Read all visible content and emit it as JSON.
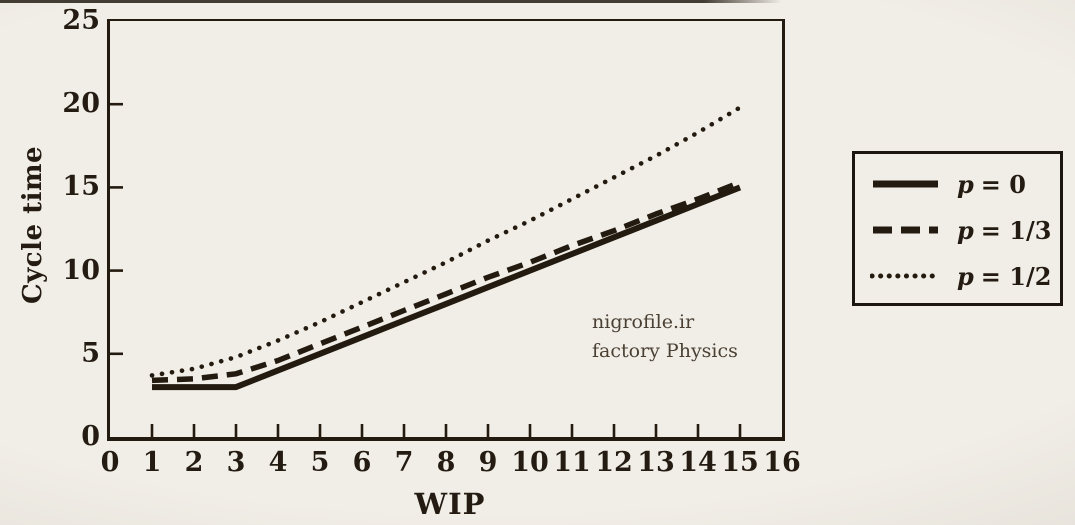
{
  "chart_data": {
    "type": "line",
    "title": "",
    "xlabel": "WIP",
    "ylabel": "Cycle time",
    "xlim": [
      0,
      16
    ],
    "ylim": [
      0,
      25
    ],
    "x_ticks": [
      0,
      1,
      2,
      3,
      4,
      5,
      6,
      7,
      8,
      9,
      10,
      11,
      12,
      13,
      14,
      15,
      16
    ],
    "y_ticks": [
      0,
      5,
      10,
      15,
      20,
      25
    ],
    "grid": false,
    "legend_position": "outside-right",
    "x": [
      1,
      2,
      3,
      4,
      5,
      6,
      7,
      8,
      9,
      10,
      11,
      12,
      13,
      14,
      15
    ],
    "series": [
      {
        "name": "p = 0",
        "label_var": "p",
        "label_rest": "= 0",
        "line_style": "solid",
        "values": [
          3,
          3,
          3,
          4,
          5,
          6,
          7,
          8,
          9,
          10,
          11,
          12,
          13,
          14,
          15
        ]
      },
      {
        "name": "p = 1/3",
        "label_var": "p",
        "label_rest": "= 1/3",
        "line_style": "dashed",
        "values": [
          3.4,
          3.5,
          3.8,
          4.6,
          5.6,
          6.6,
          7.6,
          8.6,
          9.6,
          10.5,
          11.5,
          12.4,
          13.4,
          14.3,
          15.3
        ]
      },
      {
        "name": "p = 1/2",
        "label_var": "p",
        "label_rest": "= 1/2",
        "line_style": "dotted",
        "values": [
          3.7,
          4.1,
          4.8,
          5.8,
          6.9,
          8.1,
          9.3,
          10.5,
          11.8,
          13,
          14.3,
          15.6,
          16.9,
          18.3,
          19.8
        ]
      }
    ]
  },
  "axes": {
    "x_title": "WIP",
    "y_title": "Cycle time"
  },
  "watermark": {
    "line1": "nigrofile.ir",
    "line2": "factory Physics"
  },
  "colors": {
    "background": "#f1eee7",
    "ink": "#231a10",
    "text": "#241c12",
    "watermark": "#4a4034"
  }
}
